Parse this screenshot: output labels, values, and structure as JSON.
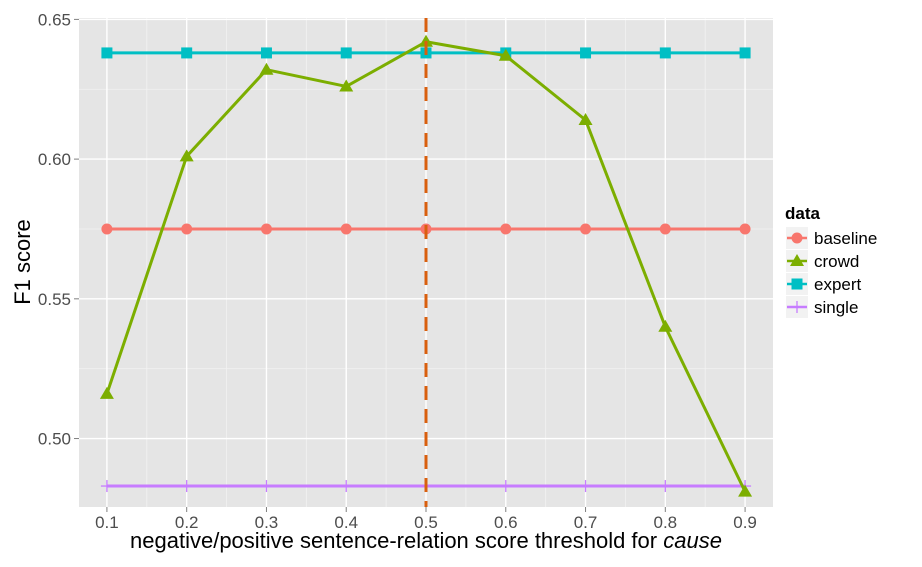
{
  "chart_data": {
    "type": "line",
    "xlabel_prefix": "negative/positive sentence-relation score threshold for ",
    "xlabel_emphasis": "cause",
    "ylabel": "F1 score",
    "x": [
      0.1,
      0.2,
      0.3,
      0.4,
      0.5,
      0.6,
      0.7,
      0.8,
      0.9
    ],
    "x_tick_labels": [
      "0.1",
      "0.2",
      "0.3",
      "0.4",
      "0.5",
      "0.6",
      "0.7",
      "0.8",
      "0.9"
    ],
    "xlim": [
      0.065,
      0.935
    ],
    "ylim": [
      0.4755,
      0.6505
    ],
    "y_ticks": [
      0.5,
      0.55,
      0.6,
      0.65
    ],
    "y_tick_labels": [
      "0.50",
      "0.55",
      "0.60",
      "0.65"
    ],
    "grid": true,
    "panel_background": "#e5e5e5",
    "grid_color": "#ffffff",
    "legend": {
      "title": "data",
      "placement": "right"
    },
    "vline": {
      "x": 0.5,
      "color": "#d95f0e",
      "style": "dashed"
    },
    "series": [
      {
        "name": "baseline",
        "color": "#f8766d",
        "marker": "circle",
        "values": [
          0.575,
          0.575,
          0.575,
          0.575,
          0.575,
          0.575,
          0.575,
          0.575,
          0.575
        ]
      },
      {
        "name": "crowd",
        "color": "#7cae00",
        "marker": "triangle",
        "values": [
          0.516,
          0.601,
          0.632,
          0.626,
          0.642,
          0.637,
          0.614,
          0.54,
          0.481
        ]
      },
      {
        "name": "expert",
        "color": "#00bfc4",
        "marker": "square",
        "values": [
          0.638,
          0.638,
          0.638,
          0.638,
          0.638,
          0.638,
          0.638,
          0.638,
          0.638
        ]
      },
      {
        "name": "single",
        "color": "#c77cff",
        "marker": "plus",
        "values": [
          0.483,
          0.483,
          0.483,
          0.483,
          0.483,
          0.483,
          0.483,
          0.483,
          0.483
        ]
      }
    ]
  }
}
